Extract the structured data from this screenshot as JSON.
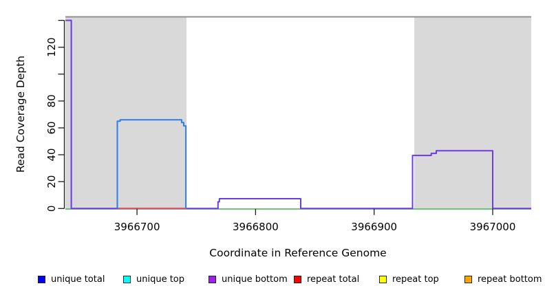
{
  "axes": {
    "x_label": "Coordinate in Reference Genome",
    "y_label": "Read Coverage Depth"
  },
  "legend": {
    "items": [
      {
        "label": "unique total",
        "color": "#0000ff"
      },
      {
        "label": "unique top",
        "color": "#00ffff"
      },
      {
        "label": "unique bottom",
        "color": "#a020f0"
      },
      {
        "label": "repeat total",
        "color": "#ff0000"
      },
      {
        "label": "repeat top",
        "color": "#ffff00"
      },
      {
        "label": "repeat bottom",
        "color": "#ffa500"
      }
    ]
  },
  "chart_data": {
    "type": "line",
    "title": "",
    "xlabel": "Coordinate in Reference Genome",
    "ylabel": "Read Coverage Depth",
    "xlim": [
      3966639.6,
      3967032.5
    ],
    "ylim": [
      0,
      142.6
    ],
    "grid": "off",
    "legend_position": "bottom",
    "x_ticks": [
      {
        "v": 3966700,
        "label": "3966700"
      },
      {
        "v": 3966800,
        "label": "3966800"
      },
      {
        "v": 3966900,
        "label": "3966900"
      },
      {
        "v": 3967000,
        "label": "3967000"
      }
    ],
    "y_ticks": [
      {
        "v": 0,
        "label": "0"
      },
      {
        "v": 20,
        "label": "20"
      },
      {
        "v": 40,
        "label": "40"
      },
      {
        "v": 60,
        "label": "60"
      },
      {
        "v": 80,
        "label": "80"
      },
      {
        "v": 100,
        "label": ""
      },
      {
        "v": 120,
        "label": "120"
      },
      {
        "v": 140,
        "label": ""
      }
    ],
    "colors": {
      "shading": "#d9d9d9",
      "axis": "#1a1a1a",
      "text": "#000000"
    },
    "shaded_regions": [
      {
        "x0": 3966639.6,
        "x1": 3966741.8
      },
      {
        "x0": 3966933.9,
        "x1": 3967032.5
      }
    ],
    "series": [
      {
        "name": "top-clip-rule",
        "color": "#909090",
        "width": 2,
        "points": [
          [
            3966639.6,
            142.6
          ],
          [
            3967032.5,
            142.6
          ]
        ]
      },
      {
        "name": "green-baseline",
        "color": "#3db24b",
        "width": 1.6,
        "points": [
          [
            3966639.6,
            -0.35
          ],
          [
            3967032.5,
            -0.35
          ]
        ]
      },
      {
        "name": "unique-bottom-violet",
        "color": "#6b3be4",
        "width": 2,
        "points": [
          [
            3966639.6,
            140
          ],
          [
            3966644.6,
            140
          ],
          [
            3966644.6,
            0
          ],
          [
            3966768.3,
            0
          ],
          [
            3966768.3,
            5
          ],
          [
            3966769.5,
            5
          ],
          [
            3966769.5,
            7.3
          ],
          [
            3966838.1,
            7.3
          ],
          [
            3966838.1,
            0
          ],
          [
            3966932.4,
            0
          ],
          [
            3966932.4,
            39.5
          ],
          [
            3966948.2,
            39.5
          ],
          [
            3966948.2,
            41
          ],
          [
            3966952.4,
            41
          ],
          [
            3966952.4,
            43
          ],
          [
            3967000,
            43
          ],
          [
            3967000,
            0
          ],
          [
            3967032.5,
            0
          ]
        ]
      },
      {
        "name": "repeat-total-red",
        "color": "#e3505e",
        "width": 2,
        "points": [
          [
            3966684,
            0
          ],
          [
            3966741.8,
            0
          ]
        ]
      },
      {
        "name": "unique-top-blue",
        "color": "#2e7cee",
        "width": 2,
        "points": [
          [
            3966683.4,
            0
          ],
          [
            3966683.4,
            65
          ],
          [
            3966685.8,
            65
          ],
          [
            3966685.8,
            66
          ],
          [
            3966737.7,
            66
          ],
          [
            3966737.7,
            64
          ],
          [
            3966739.4,
            64
          ],
          [
            3966739.4,
            61.5
          ],
          [
            3966741.2,
            61.5
          ],
          [
            3966741.2,
            0
          ]
        ]
      }
    ]
  }
}
